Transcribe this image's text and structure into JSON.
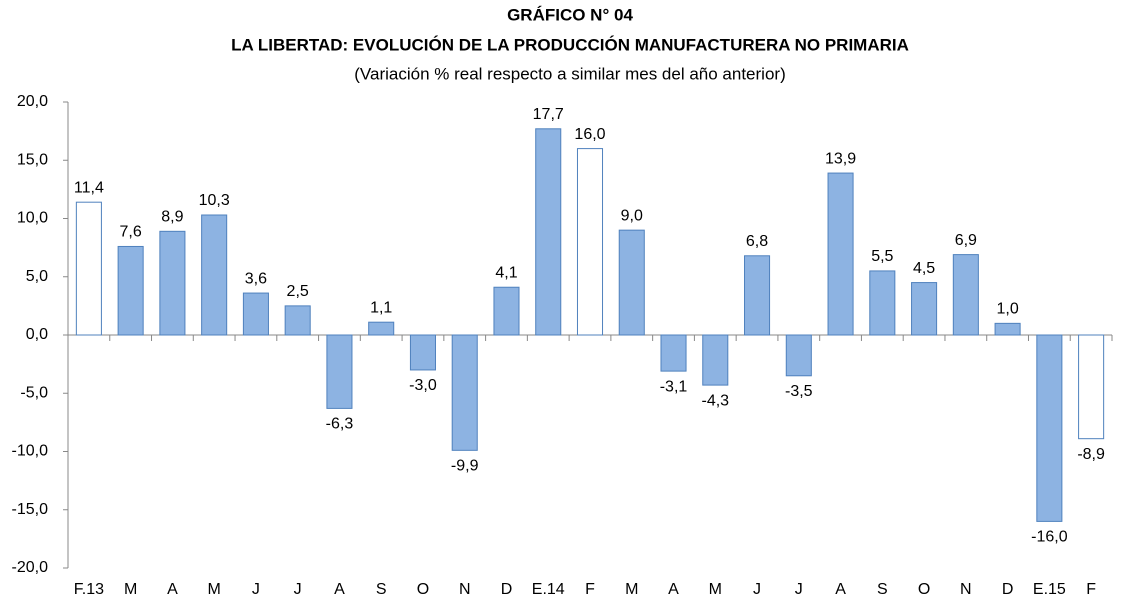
{
  "chart_data": {
    "type": "bar",
    "title": "GRÁFICO N° 04",
    "subtitle": "LA LIBERTAD: EVOLUCIÓN DE LA PRODUCCIÓN MANUFACTURERA NO PRIMARIA",
    "note": "(Variación % real respecto a similar mes del año anterior)",
    "categories": [
      "F.13",
      "M",
      "A",
      "M",
      "J",
      "J",
      "A",
      "S",
      "O",
      "N",
      "D",
      "E.14",
      "F",
      "M",
      "A",
      "M",
      "J",
      "J",
      "A",
      "S",
      "O",
      "N",
      "D",
      "E.15",
      "F"
    ],
    "values": [
      11.4,
      7.6,
      8.9,
      10.3,
      3.6,
      2.5,
      -6.3,
      1.1,
      -3.0,
      -9.9,
      4.1,
      17.7,
      16.0,
      9.0,
      -3.1,
      -4.3,
      6.8,
      -3.5,
      13.9,
      5.5,
      4.5,
      6.9,
      1.0,
      -16.0,
      -8.9
    ],
    "value_labels": [
      "11,4",
      "7,6",
      "8,9",
      "10,3",
      "3,6",
      "2,5",
      "-6,3",
      "1,1",
      "-3,0",
      "-9,9",
      "4,1",
      "17,7",
      "16,0",
      "9,0",
      "-3,1",
      "-4,3",
      "6,8",
      "-3,5",
      "13,9",
      "5,5",
      "4,5",
      "6,9",
      "1,0",
      "-16,0",
      "-8,9"
    ],
    "colors": [
      "#ffffff",
      "#8db3e2",
      "#8db3e2",
      "#8db3e2",
      "#8db3e2",
      "#8db3e2",
      "#8db3e2",
      "#8db3e2",
      "#8db3e2",
      "#8db3e2",
      "#8db3e2",
      "#8db3e2",
      "#ffffff",
      "#8db3e2",
      "#8db3e2",
      "#8db3e2",
      "#8db3e2",
      "#8db3e2",
      "#8db3e2",
      "#8db3e2",
      "#8db3e2",
      "#8db3e2",
      "#8db3e2",
      "#8db3e2",
      "#ffffff"
    ],
    "edge_color": "#4f81bd",
    "ylim": [
      -20,
      20
    ],
    "yticks": [
      {
        "value": -20,
        "label": "-20,0"
      },
      {
        "value": -15,
        "label": "-15,0"
      },
      {
        "value": -10,
        "label": "-10,0"
      },
      {
        "value": -5,
        "label": "-5,0"
      },
      {
        "value": 0,
        "label": "0,0"
      },
      {
        "value": 5,
        "label": "5,0"
      },
      {
        "value": 10,
        "label": "10,0"
      },
      {
        "value": 15,
        "label": "15,0"
      },
      {
        "value": 20,
        "label": "20,0"
      }
    ],
    "grid": false
  }
}
